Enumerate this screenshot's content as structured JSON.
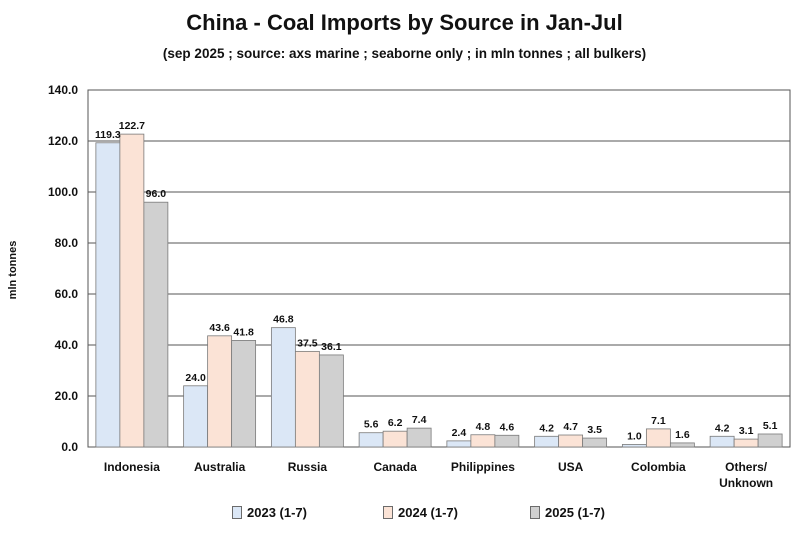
{
  "chart_data": {
    "type": "bar",
    "title": "China - Coal Imports by Source in Jan-Jul",
    "subtitle": "(sep 2025 ; source: axs marine ; seaborne only ; in mln tonnes ; all bulkers)",
    "xlabel": "",
    "ylabel": "mln tonnes",
    "ylim": [
      0,
      140
    ],
    "yticks": [
      "0.0",
      "20.0",
      "40.0",
      "60.0",
      "80.0",
      "100.0",
      "120.0",
      "140.0"
    ],
    "grid": true,
    "legend_position": "bottom",
    "categories": [
      "Indonesia",
      "Australia",
      "Russia",
      "Canada",
      "Philippines",
      "USA",
      "Colombia",
      "Others/\nUnknown"
    ],
    "series": [
      {
        "name": "2023 (1-7)",
        "color": "#dbe7f6",
        "values": [
          119.3,
          24.0,
          46.8,
          5.6,
          2.4,
          4.2,
          1.0,
          4.2
        ]
      },
      {
        "name": "2024 (1-7)",
        "color": "#fbe3d6",
        "values": [
          122.7,
          43.6,
          37.5,
          6.2,
          4.8,
          4.7,
          7.1,
          3.1
        ]
      },
      {
        "name": "2025 (1-7)",
        "color": "#d0d0d0",
        "values": [
          96.0,
          41.8,
          36.1,
          7.4,
          4.6,
          3.5,
          1.6,
          5.1
        ]
      }
    ]
  }
}
